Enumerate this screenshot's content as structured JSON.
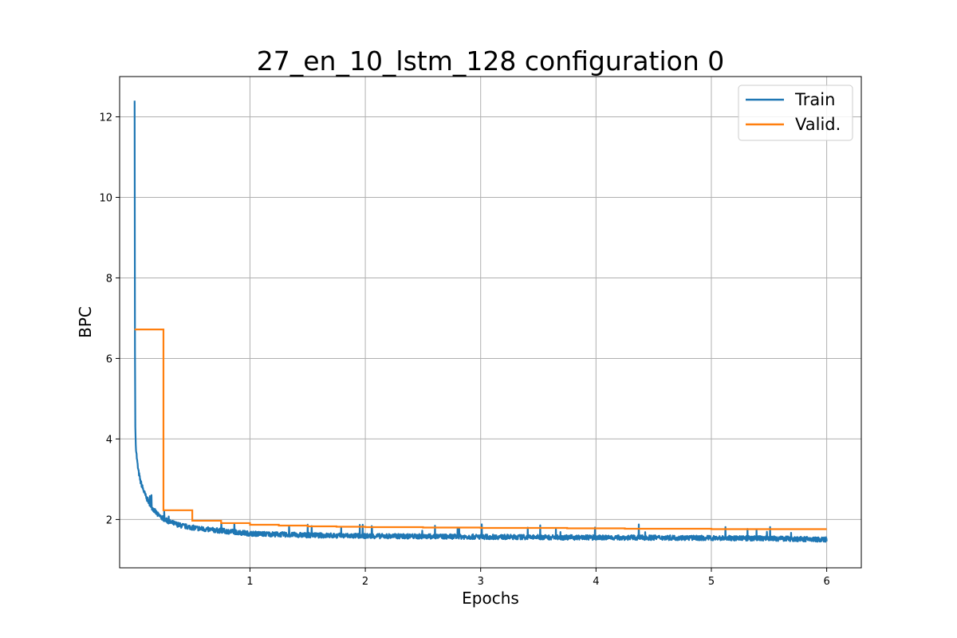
{
  "chart_data": {
    "type": "line",
    "title": "27_en_10_lstm_128 configuration 0",
    "xlabel": "Epochs",
    "ylabel": "BPC",
    "xlim": [
      -0.13,
      6.3
    ],
    "ylim": [
      0.8,
      13.0
    ],
    "xticks": [
      1,
      2,
      3,
      4,
      5,
      6
    ],
    "yticks": [
      2,
      4,
      6,
      8,
      10,
      12
    ],
    "grid": true,
    "legend_position": "top-right",
    "colors": {
      "Train": "#1f77b4",
      "Valid.": "#ff7f0e"
    },
    "series": [
      {
        "name": "Train",
        "style": "noisy-line",
        "x": [
          0.0,
          0.003,
          0.006,
          0.01,
          0.02,
          0.03,
          0.05,
          0.08,
          0.1,
          0.15,
          0.2,
          0.25,
          0.3,
          0.4,
          0.5,
          0.6,
          0.75,
          0.9,
          1.0,
          1.25,
          1.5,
          1.75,
          2.0,
          2.5,
          3.0,
          3.5,
          4.0,
          4.5,
          5.0,
          5.5,
          6.0
        ],
        "values": [
          12.4,
          6.2,
          4.3,
          3.85,
          3.5,
          3.25,
          2.95,
          2.7,
          2.55,
          2.3,
          2.12,
          2.02,
          1.94,
          1.85,
          1.8,
          1.76,
          1.72,
          1.68,
          1.65,
          1.63,
          1.61,
          1.6,
          1.59,
          1.58,
          1.57,
          1.56,
          1.55,
          1.55,
          1.54,
          1.53,
          1.5
        ],
        "noise_amplitude": 0.06
      },
      {
        "name": "Valid.",
        "style": "step",
        "x": [
          0.0,
          0.25,
          0.5,
          0.75,
          1.0,
          1.25,
          1.5,
          1.75,
          2.0,
          2.25,
          2.5,
          2.75,
          3.0,
          3.25,
          3.5,
          3.75,
          4.0,
          4.25,
          4.5,
          4.75,
          5.0,
          5.25,
          5.5,
          5.75,
          6.0
        ],
        "values": [
          6.72,
          2.23,
          1.97,
          1.91,
          1.87,
          1.85,
          1.83,
          1.82,
          1.81,
          1.81,
          1.8,
          1.8,
          1.79,
          1.79,
          1.79,
          1.78,
          1.78,
          1.77,
          1.77,
          1.77,
          1.76,
          1.76,
          1.76,
          1.76,
          1.76
        ]
      }
    ]
  }
}
